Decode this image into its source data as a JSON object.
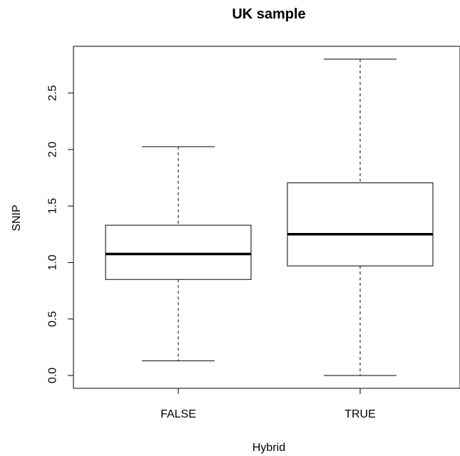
{
  "chart_data": {
    "type": "boxplot",
    "title": "UK sample",
    "xlabel": "Hybrid",
    "ylabel": "SNIP",
    "categories": [
      "FALSE",
      "TRUE"
    ],
    "yticks": [
      0.0,
      0.5,
      1.0,
      1.5,
      2.0,
      2.5
    ],
    "ytick_labels": [
      "0.0",
      "0.5",
      "1.0",
      "1.5",
      "2.0",
      "2.5"
    ],
    "ylim": [
      -0.1,
      2.89
    ],
    "grid": false,
    "legend": "none",
    "boxes": [
      {
        "category": "FALSE",
        "whisker_low": 0.13,
        "q1": 0.85,
        "median": 1.075,
        "q3": 1.33,
        "whisker_high": 2.025
      },
      {
        "category": "TRUE",
        "whisker_low": 0.0,
        "q1": 0.97,
        "median": 1.25,
        "q3": 1.705,
        "whisker_high": 2.8
      }
    ],
    "colors": {
      "box_fill": "#ffffff",
      "stroke": "#000000"
    }
  }
}
